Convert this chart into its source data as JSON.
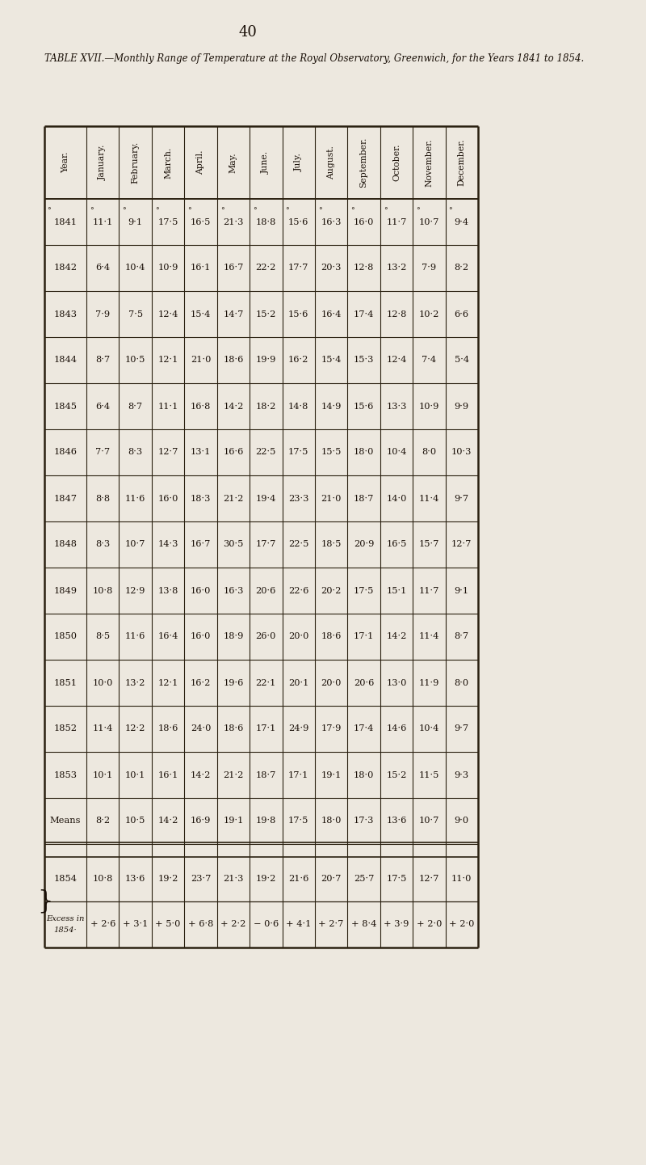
{
  "page_number": "40",
  "title_line1": "TABLE XVII.—Monthly Range of Temperature at the Royal Observatory, Greenwich, for the Years 1841 to 1854.",
  "columns": [
    "Year.",
    "January.",
    "February.",
    "March.",
    "April.",
    "May.",
    "June.",
    "July.",
    "August.",
    "September.",
    "October.",
    "November.",
    "December."
  ],
  "data_rows": [
    [
      "1841",
      "11·1",
      "9·1",
      "17·5",
      "16·5",
      "21·3",
      "18·8",
      "15·6",
      "16·3",
      "16·0",
      "11·7",
      "10·7",
      "9·4"
    ],
    [
      "1842",
      "6·4",
      "10·4",
      "10·9",
      "16·1",
      "16·7",
      "22·2",
      "17·7",
      "20·3",
      "12·8",
      "13·2",
      "7·9",
      "8·2"
    ],
    [
      "1843",
      "7·9",
      "7·5",
      "12·4",
      "15·4",
      "14·7",
      "15·2",
      "15·6",
      "16·4",
      "17·4",
      "12·8",
      "10·2",
      "6·6"
    ],
    [
      "1844",
      "8·7",
      "10·5",
      "12·1",
      "21·0",
      "18·6",
      "19·9",
      "16·2",
      "15·4",
      "15·3",
      "12·4",
      "7·4",
      "5·4"
    ],
    [
      "1845",
      "6·4",
      "8·7",
      "11·1",
      "16·8",
      "14·2",
      "18·2",
      "14·8",
      "14·9",
      "15·6",
      "13·3",
      "10·9",
      "9·9"
    ],
    [
      "1846",
      "7·7",
      "8·3",
      "12·7",
      "13·1",
      "16·6",
      "22·5",
      "17·5",
      "15·5",
      "18·0",
      "10·4",
      "8·0",
      "10·3"
    ],
    [
      "1847",
      "8·8",
      "11·6",
      "16·0",
      "18·3",
      "21·2",
      "19·4",
      "23·3",
      "21·0",
      "18·7",
      "14·0",
      "11·4",
      "9·7"
    ],
    [
      "1848",
      "8·3",
      "10·7",
      "14·3",
      "16·7",
      "30·5",
      "17·7",
      "22·5",
      "18·5",
      "20·9",
      "16·5",
      "15·7",
      "12·7"
    ],
    [
      "1849",
      "10·8",
      "12·9",
      "13·8",
      "16·0",
      "16·3",
      "20·6",
      "22·6",
      "20·2",
      "17·5",
      "15·1",
      "11·7",
      "9·1"
    ],
    [
      "1850",
      "8·5",
      "11·6",
      "16·4",
      "16·0",
      "18·9",
      "26·0",
      "20·0",
      "18·6",
      "17·1",
      "14·2",
      "11·4",
      "8·7"
    ],
    [
      "1851",
      "10·0",
      "13·2",
      "12·1",
      "16·2",
      "19·6",
      "22·1",
      "20·1",
      "20·0",
      "20·6",
      "13·0",
      "11·9",
      "8·0"
    ],
    [
      "1852",
      "11·4",
      "12·2",
      "18·6",
      "24·0",
      "18·6",
      "17·1",
      "24·9",
      "17·9",
      "17·4",
      "14·6",
      "10·4",
      "9·7"
    ],
    [
      "1853",
      "10·1",
      "10·1",
      "16·1",
      "14·2",
      "21·2",
      "18·7",
      "17·1",
      "19·1",
      "18·0",
      "15·2",
      "11·5",
      "9·3"
    ]
  ],
  "means_row": [
    "Means",
    "8·2",
    "10·5",
    "14·2",
    "16·9",
    "19·1",
    "19·8",
    "17·5",
    "18·0",
    "17·3",
    "13·6",
    "10·7",
    "9·0"
  ],
  "row_1854": [
    "1854",
    "10·8",
    "13·6",
    "19·2",
    "23·7",
    "21·3",
    "19·2",
    "21·6",
    "20·7",
    "25·7",
    "17·5",
    "12·7",
    "11·0"
  ],
  "excess_row": [
    "Excess in\n1854·",
    "+ 2·6",
    "+ 3·1",
    "+ 5·0",
    "+ 6·8",
    "+ 2·2",
    "− 0·6",
    "+ 4·1",
    "+ 2·7",
    "+ 8·4",
    "+ 3·9",
    "+ 2·0",
    "+ 2·0"
  ],
  "bg_color": "#ede8df",
  "text_color": "#1a1008",
  "line_color": "#2a2010"
}
